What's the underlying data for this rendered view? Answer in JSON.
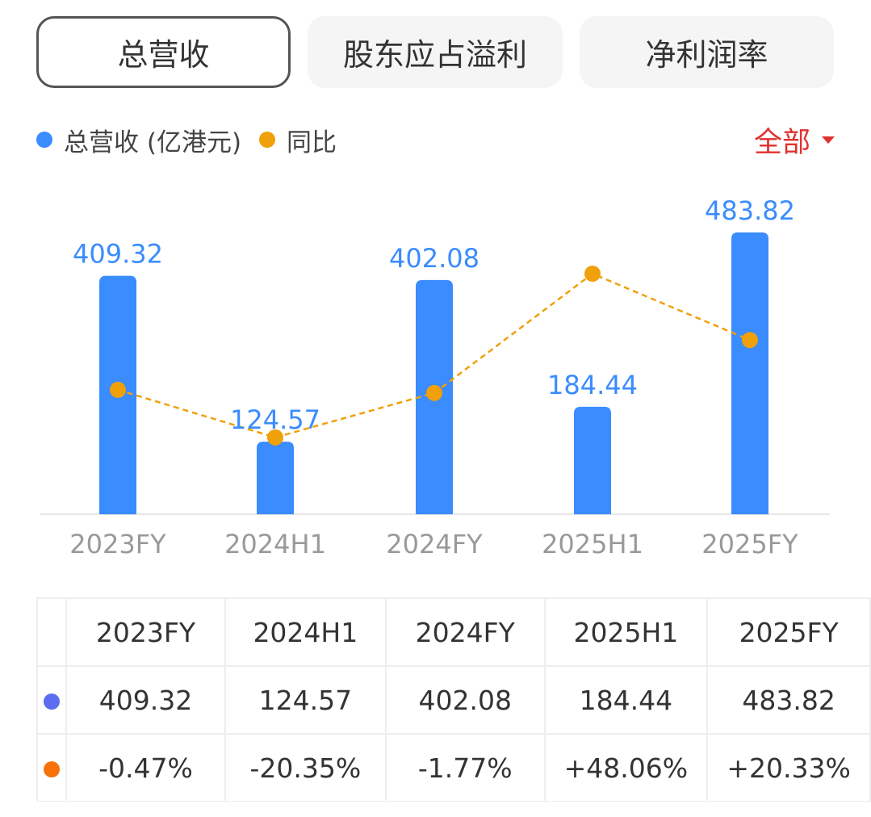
{
  "tabs": [
    {
      "label": "总营收",
      "active": true
    },
    {
      "label": "股东应占溢利",
      "active": false
    },
    {
      "label": "净利润率",
      "active": false
    }
  ],
  "legend": {
    "revenue": "总营收 (亿港元)",
    "yoy": "同比"
  },
  "filter": {
    "label": "全部",
    "color": "#e03030"
  },
  "colors": {
    "bar": "#3a8cff",
    "line": "#f0a00a",
    "table_dot1": "#5b6ef0",
    "table_dot2": "#f5720a",
    "positive": "#e03a3a",
    "negative": "#1f9d5a"
  },
  "chart_data": {
    "type": "bar",
    "categories": [
      "2023FY",
      "2024H1",
      "2024FY",
      "2025H1",
      "2025FY"
    ],
    "series": [
      {
        "name": "总营收 (亿港元)",
        "type": "bar",
        "values": [
          409.32,
          124.57,
          402.08,
          184.44,
          483.82
        ]
      },
      {
        "name": "同比",
        "type": "line",
        "values": [
          -0.47,
          -20.35,
          -1.77,
          48.06,
          20.33
        ],
        "unit": "%"
      }
    ],
    "data_labels": [
      "409.32",
      "124.57",
      "402.08",
      "184.44",
      "483.82"
    ],
    "grid": false,
    "legend_position": "top-left"
  },
  "table": {
    "headers": [
      "2023FY",
      "2024H1",
      "2024FY",
      "2025H1",
      "2025FY"
    ],
    "rows": [
      {
        "values": [
          "409.32",
          "124.57",
          "402.08",
          "184.44",
          "483.82"
        ]
      },
      {
        "values": [
          "-0.47%",
          "-20.35%",
          "-1.77%",
          "+48.06%",
          "+20.33%"
        ]
      }
    ]
  }
}
